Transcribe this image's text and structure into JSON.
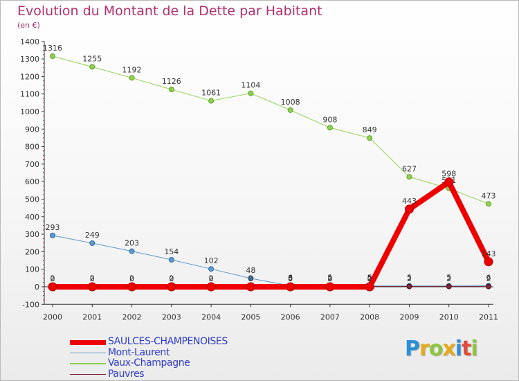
{
  "title": "Evolution du Montant de la Dette par Habitant",
  "subtitle": "(en €)",
  "logo": {
    "text": "Proxiti",
    "letters": [
      {
        "ch": "P",
        "color": "#2b8fd6"
      },
      {
        "ch": "r",
        "color": "#e8a81a"
      },
      {
        "ch": "o",
        "color": "#8cc63f"
      },
      {
        "ch": "x",
        "color": "#e8a81a"
      },
      {
        "ch": "i",
        "color": "#2b8fd6"
      },
      {
        "ch": "t",
        "color": "#e04a3a"
      },
      {
        "ch": "i",
        "color": "#8cc63f"
      }
    ]
  },
  "chart_data": {
    "type": "line",
    "title": "Evolution du Montant de la Dette par Habitant",
    "subtitle": "(en €)",
    "xlabel": "",
    "ylabel": "",
    "x": [
      "2000",
      "2001",
      "2002",
      "2003",
      "2004",
      "2005",
      "2006",
      "2007",
      "2008",
      "2009",
      "2010",
      "2011"
    ],
    "ylim": [
      -100,
      1400
    ],
    "yticks": [
      -100,
      0,
      100,
      200,
      300,
      400,
      500,
      600,
      700,
      800,
      900,
      1000,
      1100,
      1200,
      1300,
      1400
    ],
    "grid": false,
    "legend_position": "bottom-left",
    "series": [
      {
        "name": "Vaux-Champagne",
        "color": "#8fd14f",
        "marker_fill": "#8fd14f",
        "marker_stroke": "#5ea02a",
        "width": 1,
        "marker_r": 3.5,
        "values": [
          1316,
          1255,
          1192,
          1126,
          1061,
          1104,
          1008,
          908,
          849,
          627,
          561,
          473
        ]
      },
      {
        "name": "Mont-Laurent",
        "color": "#5e9acd",
        "marker_fill": "#5e9acd",
        "marker_stroke": "#2f6da3",
        "width": 1,
        "marker_r": 3.5,
        "values": [
          293,
          249,
          203,
          154,
          102,
          48,
          6,
          5,
          5,
          5,
          5,
          6
        ]
      },
      {
        "name": "Pauvres",
        "color": "#7a2a3a",
        "marker_fill": "#7a2a3a",
        "marker_stroke": "#4a1020",
        "width": 1,
        "marker_r": 3.5,
        "values": [
          2,
          2,
          2,
          2,
          2,
          2,
          3,
          2,
          2,
          2,
          2,
          2
        ]
      },
      {
        "name": "SAULCES-CHAMPENOISES",
        "color": "#ee0000",
        "marker_fill": "#ee0000",
        "marker_stroke": "#aa0000",
        "width": 8,
        "marker_r": 6,
        "values": [
          0,
          0,
          0,
          0,
          0,
          0,
          0,
          0,
          0,
          443,
          598,
          143
        ]
      }
    ],
    "data_labels": [
      {
        "series": "Vaux-Champagne",
        "text": [
          "1316",
          "1255",
          "1192",
          "1126",
          "1061",
          "1104",
          "1008",
          "908",
          "849",
          "627",
          "561",
          "473"
        ]
      },
      {
        "series": "Mont-Laurent",
        "text": [
          "293",
          "249",
          "203",
          "154",
          "102",
          "48",
          "6",
          "5",
          "5",
          "5",
          "5",
          "6"
        ]
      },
      {
        "series": "Pauvres",
        "text": [
          "2",
          "2",
          "2",
          "2",
          "2",
          "2",
          "3",
          "2",
          "2",
          "2",
          "2",
          "2"
        ]
      },
      {
        "series": "SAULCES-CHAMPENOISES",
        "text": [
          "0",
          "0",
          "0",
          "0",
          "0",
          "0",
          "0",
          "0",
          "0",
          "443",
          "598",
          "143"
        ]
      }
    ]
  },
  "legend": [
    {
      "name": "SAULCES-CHAMPENOISES",
      "color": "#ee0000",
      "swatch_height": 7
    },
    {
      "name": "Mont-Laurent",
      "color": "#5e9acd",
      "swatch_height": 1.5
    },
    {
      "name": "Vaux-Champagne",
      "color": "#8fd14f",
      "swatch_height": 1.5
    },
    {
      "name": "Pauvres",
      "color": "#7a2a3a",
      "swatch_height": 1.5
    }
  ]
}
